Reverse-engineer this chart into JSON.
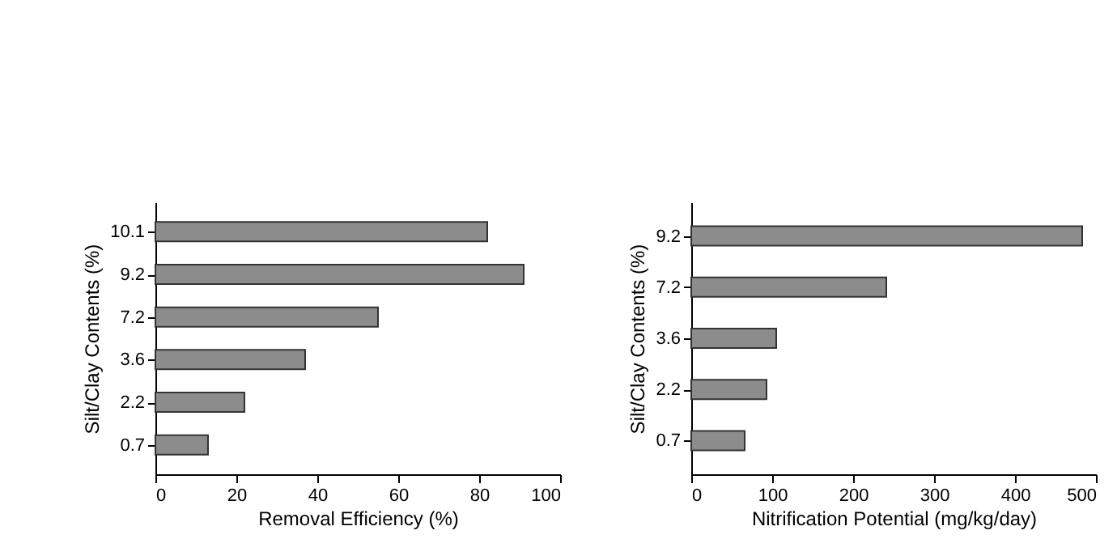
{
  "chart_data": [
    {
      "type": "bar",
      "orientation": "horizontal",
      "categories": [
        "10.1",
        "9.2",
        "7.2",
        "3.6",
        "2.2",
        "0.7"
      ],
      "values": [
        82,
        91,
        55,
        37,
        22,
        13
      ],
      "color": "#8c8c8c",
      "xlabel": "Removal Efficiency (%)",
      "ylabel": "Silt/Clay Contents (%)",
      "xlim": [
        0,
        100
      ],
      "xticks": [
        0,
        20,
        40,
        60,
        80,
        100
      ],
      "grid": false
    },
    {
      "type": "bar",
      "orientation": "horizontal",
      "categories": [
        "9.2",
        "7.2",
        "3.6",
        "2.2",
        "0.7"
      ],
      "values": [
        483,
        241,
        105,
        93,
        66
      ],
      "color": "#8c8c8c",
      "xlabel": "Nitrification Potential (mg/kg/day)",
      "ylabel": "Silt/Clay Contents (%)",
      "xlim": [
        0,
        500
      ],
      "xticks": [
        0,
        100,
        200,
        300,
        400,
        500
      ],
      "grid": false
    }
  ]
}
